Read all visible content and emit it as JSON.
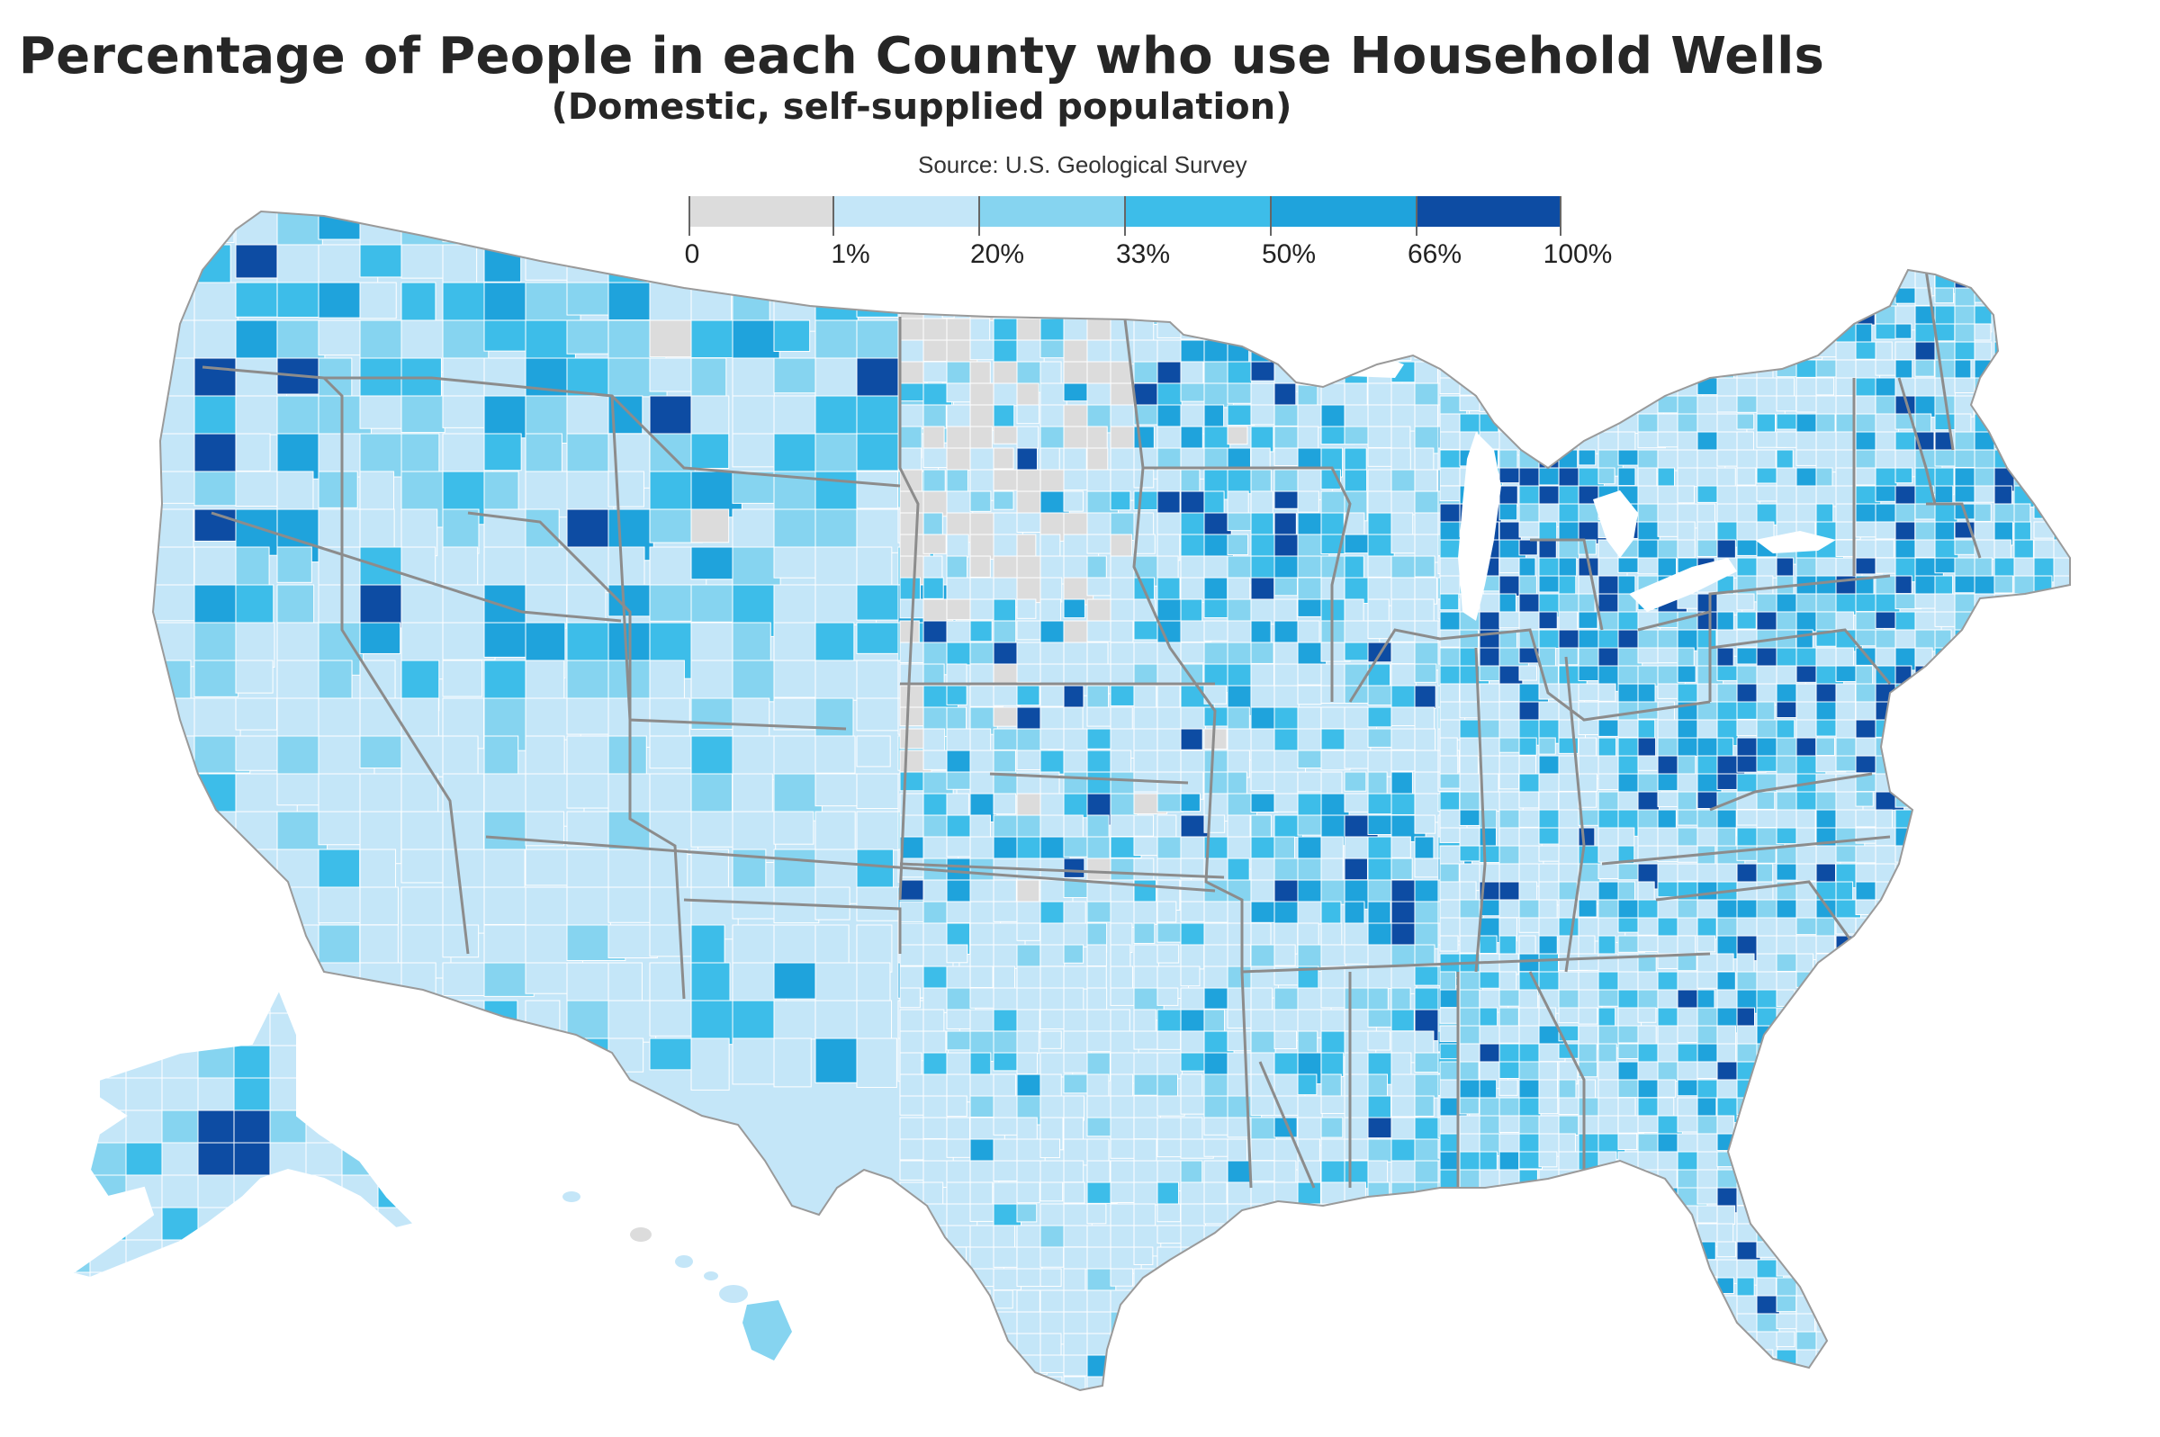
{
  "map": {
    "title": "Percentage of People in each County who use Household Wells",
    "subtitle": "(Domestic, self-supplied population)",
    "source": "Source: U.S. Geological Survey"
  },
  "legend": {
    "labels": [
      "0",
      "1%",
      "20%",
      "33%",
      "50%",
      "66%",
      "100%"
    ],
    "bins": [
      {
        "from": "0",
        "to": "1%",
        "color": "#dcdcdc"
      },
      {
        "from": "1%",
        "to": "20%",
        "color": "#c4e6f8"
      },
      {
        "from": "20%",
        "to": "33%",
        "color": "#86d4f0"
      },
      {
        "from": "33%",
        "to": "50%",
        "color": "#3dbde9"
      },
      {
        "from": "50%",
        "to": "66%",
        "color": "#1fa3dc"
      },
      {
        "from": "66%",
        "to": "100%",
        "color": "#0d4ca3"
      }
    ]
  },
  "colors": {
    "border_state": "#8c8c8c",
    "border_county": "#ffffff",
    "background": "#ffffff"
  }
}
